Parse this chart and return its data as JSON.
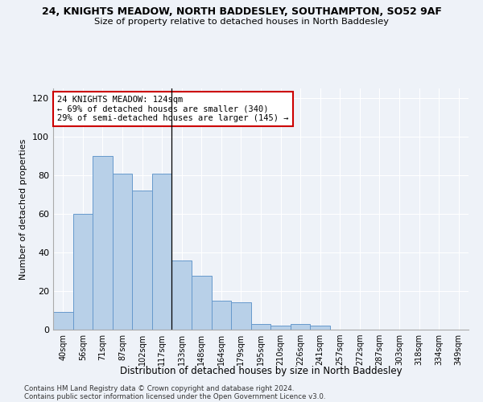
{
  "title1": "24, KNIGHTS MEADOW, NORTH BADDESLEY, SOUTHAMPTON, SO52 9AF",
  "title2": "Size of property relative to detached houses in North Baddesley",
  "xlabel": "Distribution of detached houses by size in North Baddesley",
  "ylabel": "Number of detached properties",
  "bar_color": "#b8d0e8",
  "bar_edge_color": "#6699cc",
  "categories": [
    "40sqm",
    "56sqm",
    "71sqm",
    "87sqm",
    "102sqm",
    "117sqm",
    "133sqm",
    "148sqm",
    "164sqm",
    "179sqm",
    "195sqm",
    "210sqm",
    "226sqm",
    "241sqm",
    "257sqm",
    "272sqm",
    "287sqm",
    "303sqm",
    "318sqm",
    "334sqm",
    "349sqm"
  ],
  "values": [
    9,
    60,
    90,
    81,
    72,
    81,
    36,
    28,
    15,
    14,
    3,
    2,
    3,
    2,
    0,
    0,
    0,
    0,
    0,
    0,
    0
  ],
  "annotation_text": "24 KNIGHTS MEADOW: 124sqm\n← 69% of detached houses are smaller (340)\n29% of semi-detached houses are larger (145) →",
  "annotation_box_color": "white",
  "annotation_box_edge": "#cc0000",
  "property_line_x": 5.5,
  "ylim": [
    0,
    125
  ],
  "yticks": [
    0,
    20,
    40,
    60,
    80,
    100,
    120
  ],
  "background_color": "#eef2f8",
  "grid_color": "#ffffff",
  "footer1": "Contains HM Land Registry data © Crown copyright and database right 2024.",
  "footer2": "Contains public sector information licensed under the Open Government Licence v3.0."
}
